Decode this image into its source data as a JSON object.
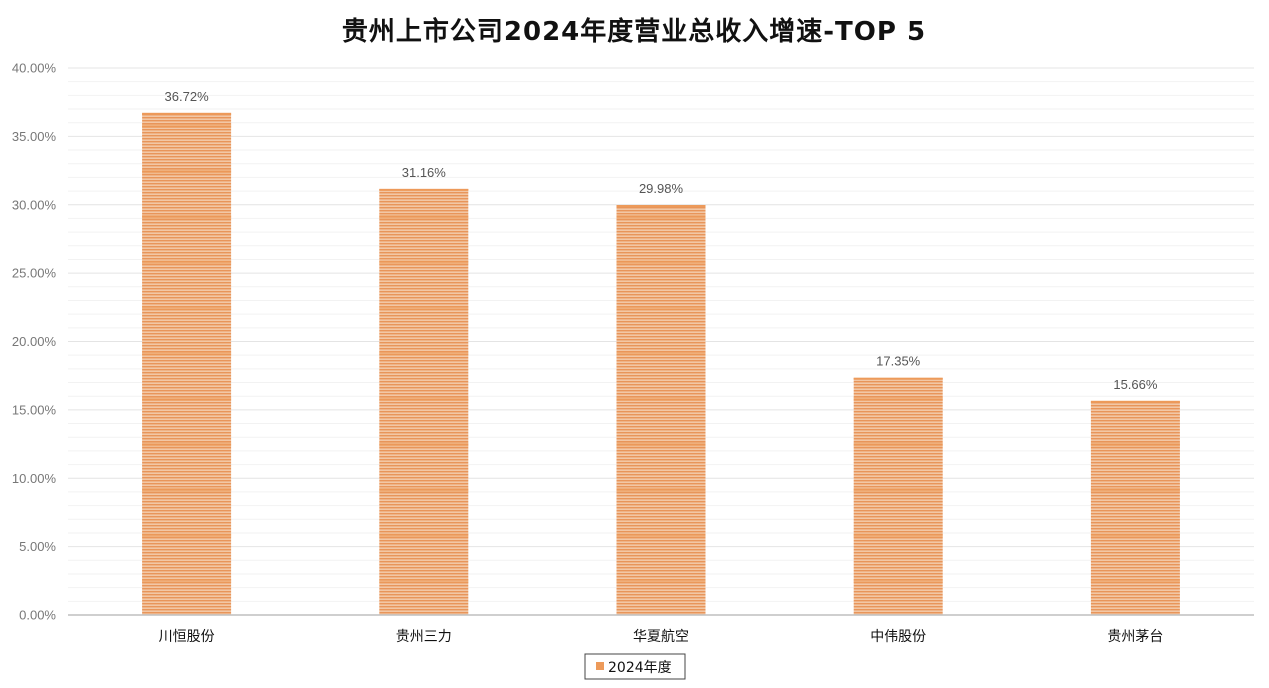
{
  "chart_data": {
    "type": "bar",
    "title": "贵州上市公司2024年度营业总收入增速-TOP 5",
    "xlabel": "",
    "ylabel": "",
    "categories": [
      "川恒股份",
      "贵州三力",
      "华夏航空",
      "中伟股份",
      "贵州茅台"
    ],
    "series": [
      {
        "name": "2024年度",
        "values": [
          36.72,
          31.16,
          29.98,
          17.35,
          15.66
        ],
        "data_labels": [
          "36.72%",
          "31.16%",
          "29.98%",
          "17.35%",
          "15.66%"
        ],
        "color": "#ED9A5A"
      }
    ],
    "ylim": [
      0,
      40
    ],
    "yticks": [
      "0.00%",
      "5.00%",
      "10.00%",
      "15.00%",
      "20.00%",
      "25.00%",
      "30.00%",
      "35.00%",
      "40.00%"
    ],
    "grid": true,
    "legend": "bottom-center"
  }
}
